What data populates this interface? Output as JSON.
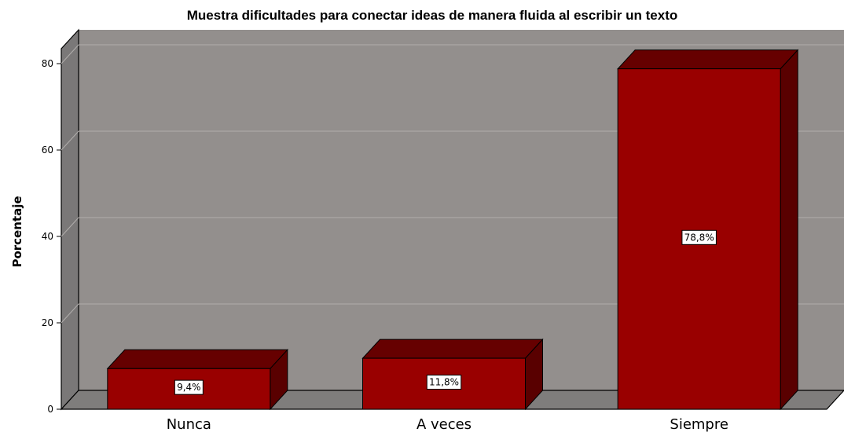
{
  "chart_data": {
    "type": "bar",
    "title": "Muestra dificultades para conectar ideas de manera fluida al escribir un texto",
    "xlabel": "",
    "ylabel": "Porcentaje",
    "categories": [
      "Nunca",
      "A veces",
      "Siempre"
    ],
    "values": [
      9.4,
      11.8,
      78.8
    ],
    "data_labels": [
      "9,4%",
      "11,8%",
      "78,8%"
    ],
    "yticks": [
      0,
      20,
      40,
      60,
      80
    ],
    "ylim": [
      0,
      85
    ],
    "grid": true,
    "three_d": true,
    "legend": "none",
    "colors": {
      "bar_front": "#990000",
      "bar_top": "#660000",
      "bar_side": "#590000",
      "back_wall": "#938f8d",
      "side_wall": "#7a7878",
      "floor": "#7f7d7c",
      "gridline": "#b1aeac",
      "label_box": "#ffffff"
    }
  }
}
